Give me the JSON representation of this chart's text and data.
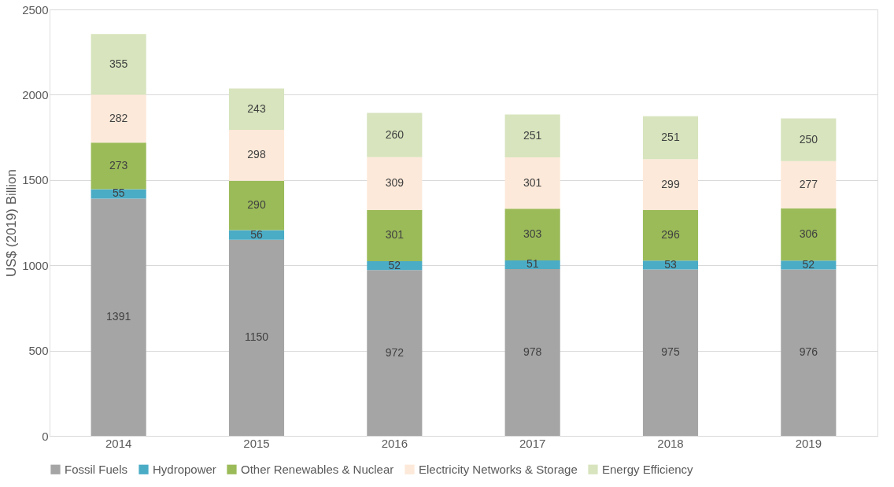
{
  "chart_data": {
    "type": "bar",
    "stacked": true,
    "ylabel": "US$ (2019) Billion",
    "categories": [
      "2014",
      "2015",
      "2016",
      "2017",
      "2018",
      "2019"
    ],
    "series": [
      {
        "name": "Fossil Fuels",
        "color": "#a5a5a5",
        "values": [
          1391,
          1150,
          972,
          978,
          975,
          976
        ]
      },
      {
        "name": "Hydropower",
        "color": "#4bacc6",
        "values": [
          55,
          56,
          52,
          51,
          53,
          52
        ]
      },
      {
        "name": "Other Renewables & Nuclear",
        "color": "#9bbb59",
        "values": [
          273,
          290,
          301,
          303,
          296,
          306
        ]
      },
      {
        "name": "Electricity Networks & Storage",
        "color": "#fde9d9",
        "values": [
          282,
          298,
          309,
          301,
          299,
          277
        ]
      },
      {
        "name": "Energy Efficiency",
        "color": "#d7e4bd",
        "values": [
          355,
          243,
          260,
          251,
          251,
          250
        ]
      }
    ],
    "ylim": [
      0,
      2500
    ],
    "yticks": [
      0,
      500,
      1000,
      1500,
      2000,
      2500
    ],
    "grid": "y",
    "legend": "bottom",
    "data_labels": true
  }
}
